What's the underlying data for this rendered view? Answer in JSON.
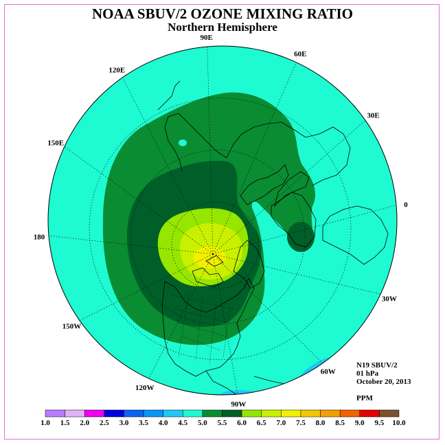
{
  "title": "NOAA SBUV/2 OZONE MIXING RATIO",
  "subtitle": "Northern Hemisphere",
  "info": {
    "instrument": "N19 SBUV/2",
    "level": "01 hPa",
    "date": "October 20, 2013",
    "units": "PPM"
  },
  "meridian_labels": [
    {
      "text": "90E",
      "lon": 90
    },
    {
      "text": "60E",
      "lon": 60
    },
    {
      "text": "30E",
      "lon": 30
    },
    {
      "text": "0",
      "lon": 0
    },
    {
      "text": "30W",
      "lon": -30
    },
    {
      "text": "60W",
      "lon": -60
    },
    {
      "text": "90W",
      "lon": -90
    },
    {
      "text": "120W",
      "lon": -120
    },
    {
      "text": "150W",
      "lon": -150
    },
    {
      "text": "180",
      "lon": 180
    },
    {
      "text": "150E",
      "lon": 150
    },
    {
      "text": "120E",
      "lon": 120
    }
  ],
  "colorbar": {
    "labels": [
      "1.0",
      "1.5",
      "2.0",
      "2.5",
      "3.0",
      "3.5",
      "4.0",
      "4.5",
      "5.0",
      "5.5",
      "6.0",
      "6.5",
      "7.0",
      "7.5",
      "8.0",
      "8.5",
      "9.0",
      "9.5",
      "10.0"
    ],
    "colors": [
      "#b77bff",
      "#e0b4f4",
      "#f000f0",
      "#0000e0",
      "#0a64f0",
      "#0a96f4",
      "#1ec8f4",
      "#1efad2",
      "#0a8c32",
      "#005f28",
      "#96e600",
      "#c8f000",
      "#f0f000",
      "#f0c800",
      "#f0a000",
      "#f06400",
      "#e60000",
      "#7d5032"
    ]
  },
  "colors": {
    "level_4_5_5_0": "#1efad2",
    "level_5_0_5_5": "#0a8c32",
    "level_5_5_6_0": "#005f28",
    "level_6_0_6_5": "#96e600",
    "level_6_5_7_0": "#c8f000",
    "level_7_0_7_5": "#f0f000",
    "level_4_0_4_5": "#1ec8f4"
  }
}
